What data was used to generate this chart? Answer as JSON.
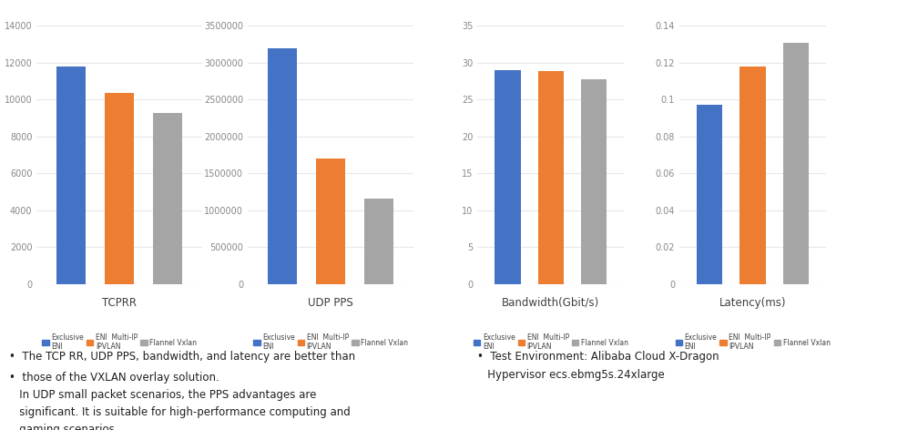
{
  "charts": [
    {
      "title": "TCPRR",
      "values": [
        11800,
        10350,
        9250
      ],
      "ylim": [
        0,
        14000
      ],
      "yticks": [
        0,
        2000,
        4000,
        6000,
        8000,
        10000,
        12000,
        14000
      ],
      "tick_labels": [
        "0",
        "2000",
        "4000",
        "6000",
        "8000",
        "10000",
        "12000",
        "14000"
      ]
    },
    {
      "title": "UDP PPS",
      "values": [
        3200000,
        1700000,
        1150000
      ],
      "ylim": [
        0,
        3500000
      ],
      "yticks": [
        0,
        500000,
        1000000,
        1500000,
        2000000,
        2500000,
        3000000,
        3500000
      ],
      "tick_labels": [
        "0",
        "500000",
        "1000000",
        "1500000",
        "2000000",
        "2500000",
        "3000000",
        "3500000"
      ]
    },
    {
      "title": "Bandwidth(Gbit/s)",
      "values": [
        29.0,
        28.8,
        27.8
      ],
      "ylim": [
        0,
        35
      ],
      "yticks": [
        0,
        5,
        10,
        15,
        20,
        25,
        30,
        35
      ],
      "tick_labels": [
        "0",
        "5",
        "10",
        "15",
        "20",
        "25",
        "30",
        "35"
      ]
    },
    {
      "title": "Latency(ms)",
      "values": [
        0.097,
        0.118,
        0.131
      ],
      "ylim": [
        0,
        0.14
      ],
      "yticks": [
        0,
        0.02,
        0.04,
        0.06,
        0.08,
        0.1,
        0.12,
        0.14
      ],
      "tick_labels": [
        "0",
        "0.02",
        "0.04",
        "0.06",
        "0.08",
        "0.1",
        "0.12",
        "0.14"
      ]
    }
  ],
  "bar_colors": [
    "#4472c4",
    "#ed7d31",
    "#a5a5a5"
  ],
  "legend_labels": [
    "Exclusive\nENI",
    "ENI  Multi-IP\nIPVLAN",
    "Flannel Vxlan"
  ],
  "bullet_text_left_1": "•  The TCP RR, UDP PPS, bandwidth, and latency are better than",
  "bullet_text_left_2": "•  those of the VXLAN overlay solution.\n   In UDP small packet scenarios, the PPS advantages are\n   significant. It is suitable for high-performance computing and\n   gaming scenarios.",
  "bullet_text_right": "•  Test Environment: Alibaba Cloud X-Dragon\n   Hypervisor ecs.ebmg5s.24xlarge",
  "bg_color": "#ffffff",
  "text_color": "#404040",
  "tick_color": "#888888",
  "grid_color": "#e8e8e8"
}
